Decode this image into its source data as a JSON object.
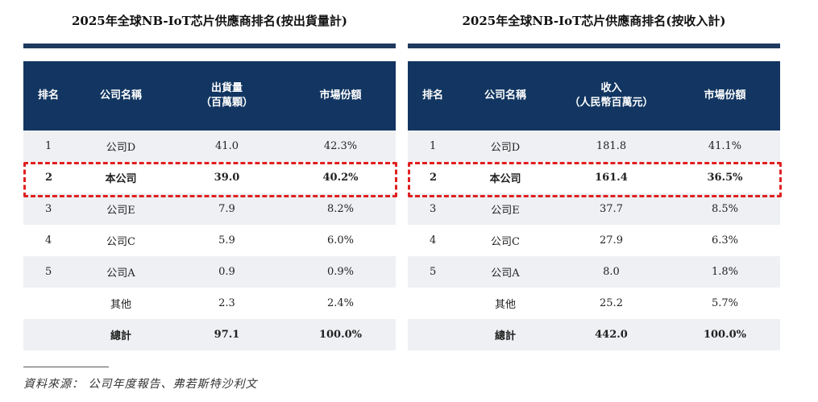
{
  "tables": [
    {
      "title": "2025年全球NB-IoT芯片供應商排名(按出貨量計)",
      "headers": [
        "排名",
        "公司名稱",
        "出貨量\n（百萬顆）",
        "市場份額"
      ],
      "rows": [
        [
          "1",
          "公司D",
          "41.0",
          "42.3%"
        ],
        [
          "2",
          "本公司",
          "39.0",
          "40.2%"
        ],
        [
          "3",
          "公司E",
          "7.9",
          "8.2%"
        ],
        [
          "4",
          "公司C",
          "5.9",
          "6.0%"
        ],
        [
          "5",
          "公司A",
          "0.9",
          "0.9%"
        ],
        [
          "",
          "其他",
          "2.3",
          "2.4%"
        ],
        [
          "",
          "總計",
          "97.1",
          "100.0%"
        ]
      ]
    },
    {
      "title": "2025年全球NB-IoT芯片供應商排名(按收入計)",
      "headers": [
        "排名",
        "公司名稱",
        "收入\n（人民幣百萬元）",
        "市場份額"
      ],
      "rows": [
        [
          "1",
          "公司D",
          "181.8",
          "41.1%"
        ],
        [
          "2",
          "本公司",
          "161.4",
          "36.5%"
        ],
        [
          "3",
          "公司E",
          "37.7",
          "8.5%"
        ],
        [
          "4",
          "公司C",
          "27.9",
          "6.3%"
        ],
        [
          "5",
          "公司A",
          "8.0",
          "1.8%"
        ],
        [
          "",
          "其他",
          "25.2",
          "5.7%"
        ],
        [
          "",
          "總計",
          "442.0",
          "100.0%"
        ]
      ]
    }
  ],
  "source": "資料來源： 公司年度報告、弗若斯特沙利文",
  "colors": {
    "header_bg": "#123661",
    "highlight": "#e02020",
    "stripe": "#eef0f3"
  }
}
